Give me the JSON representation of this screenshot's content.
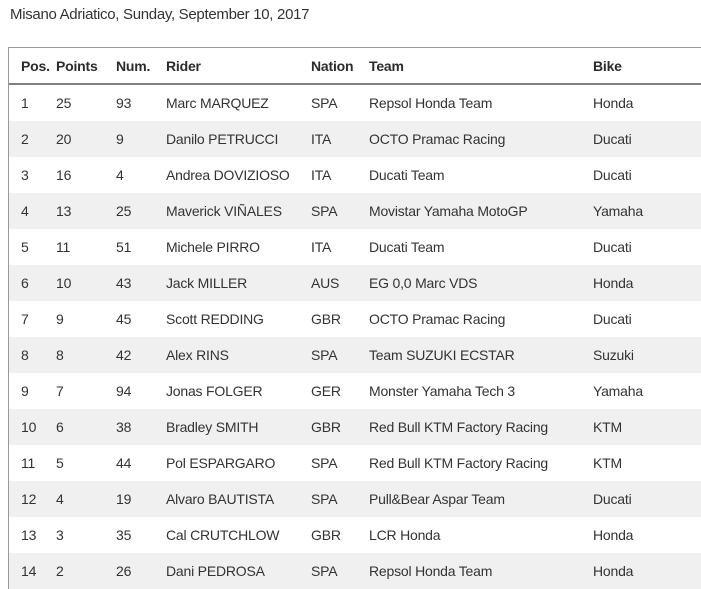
{
  "page": {
    "title": "Misano Adriatico, Sunday, September 10, 2017"
  },
  "table": {
    "columns": [
      "Pos.",
      "Points",
      "Num.",
      "Rider",
      "Nation",
      "Team",
      "Bike"
    ],
    "rows": [
      [
        "1",
        "25",
        "93",
        "Marc MARQUEZ",
        "SPA",
        "Repsol Honda Team",
        "Honda"
      ],
      [
        "2",
        "20",
        "9",
        "Danilo PETRUCCI",
        "ITA",
        "OCTO Pramac Racing",
        "Ducati"
      ],
      [
        "3",
        "16",
        "4",
        "Andrea DOVIZIOSO",
        "ITA",
        "Ducati Team",
        "Ducati"
      ],
      [
        "4",
        "13",
        "25",
        "Maverick VIÑALES",
        "SPA",
        "Movistar Yamaha MotoGP",
        "Yamaha"
      ],
      [
        "5",
        "11",
        "51",
        "Michele PIRRO",
        "ITA",
        "Ducati Team",
        "Ducati"
      ],
      [
        "6",
        "10",
        "43",
        "Jack MILLER",
        "AUS",
        "EG 0,0 Marc VDS",
        "Honda"
      ],
      [
        "7",
        "9",
        "45",
        "Scott REDDING",
        "GBR",
        "OCTO Pramac Racing",
        "Ducati"
      ],
      [
        "8",
        "8",
        "42",
        "Alex RINS",
        "SPA",
        "Team SUZUKI ECSTAR",
        "Suzuki"
      ],
      [
        "9",
        "7",
        "94",
        "Jonas FOLGER",
        "GER",
        "Monster Yamaha Tech 3",
        "Yamaha"
      ],
      [
        "10",
        "6",
        "38",
        "Bradley SMITH",
        "GBR",
        "Red Bull KTM Factory Racing",
        "KTM"
      ],
      [
        "11",
        "5",
        "44",
        "Pol ESPARGARO",
        "SPA",
        "Red Bull KTM Factory Racing",
        "KTM"
      ],
      [
        "12",
        "4",
        "19",
        "Alvaro BAUTISTA",
        "SPA",
        "Pull&Bear Aspar Team",
        "Ducati"
      ],
      [
        "13",
        "3",
        "35",
        "Cal CRUTCHLOW",
        "GBR",
        "LCR Honda",
        "Honda"
      ],
      [
        "14",
        "2",
        "26",
        "Dani PEDROSA",
        "SPA",
        "Repsol Honda Team",
        "Honda"
      ]
    ],
    "colors": {
      "stripe": "#f0f0f0",
      "outer_border": "#999999",
      "header_separator": "#7f7f7f",
      "text": "#333333"
    }
  }
}
